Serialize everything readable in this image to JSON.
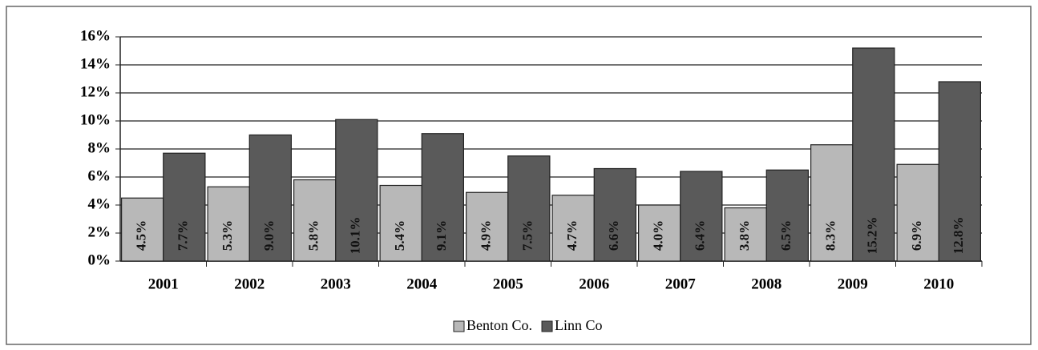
{
  "chart_data": {
    "type": "bar",
    "categories": [
      "2001",
      "2002",
      "2003",
      "2004",
      "2005",
      "2006",
      "2007",
      "2008",
      "2009",
      "2010"
    ],
    "series": [
      {
        "name": "Benton Co.",
        "color": "#b8b8b8",
        "values": [
          4.5,
          5.3,
          5.8,
          5.4,
          4.9,
          4.7,
          4.0,
          3.8,
          8.3,
          6.9
        ],
        "value_labels": [
          "4.5%",
          "5.3%",
          "5.8%",
          "5.4%",
          "4.9%",
          "4.7%",
          "4.0%",
          "3.8%",
          "8.3%",
          "6.9%"
        ]
      },
      {
        "name": "Linn Co",
        "color": "#5a5a5a",
        "values": [
          7.7,
          9.0,
          10.1,
          9.1,
          7.5,
          6.6,
          6.4,
          6.5,
          15.2,
          12.8
        ],
        "value_labels": [
          "7.7%",
          "9.0%",
          "10.1%",
          "9.1%",
          "7.5%",
          "6.6%",
          "6.4%",
          "6.5%",
          "15.2%",
          "12.8%"
        ]
      }
    ],
    "ylim": [
      0,
      16
    ],
    "yticks": [
      {
        "value": 0,
        "label": "0%"
      },
      {
        "value": 2,
        "label": "2%"
      },
      {
        "value": 4,
        "label": "4%"
      },
      {
        "value": 6,
        "label": "6%"
      },
      {
        "value": 8,
        "label": "8%"
      },
      {
        "value": 10,
        "label": "10%"
      },
      {
        "value": 12,
        "label": "12%"
      },
      {
        "value": 14,
        "label": "14%"
      },
      {
        "value": 16,
        "label": "16%"
      }
    ],
    "grid": true,
    "legend": "bottom"
  }
}
